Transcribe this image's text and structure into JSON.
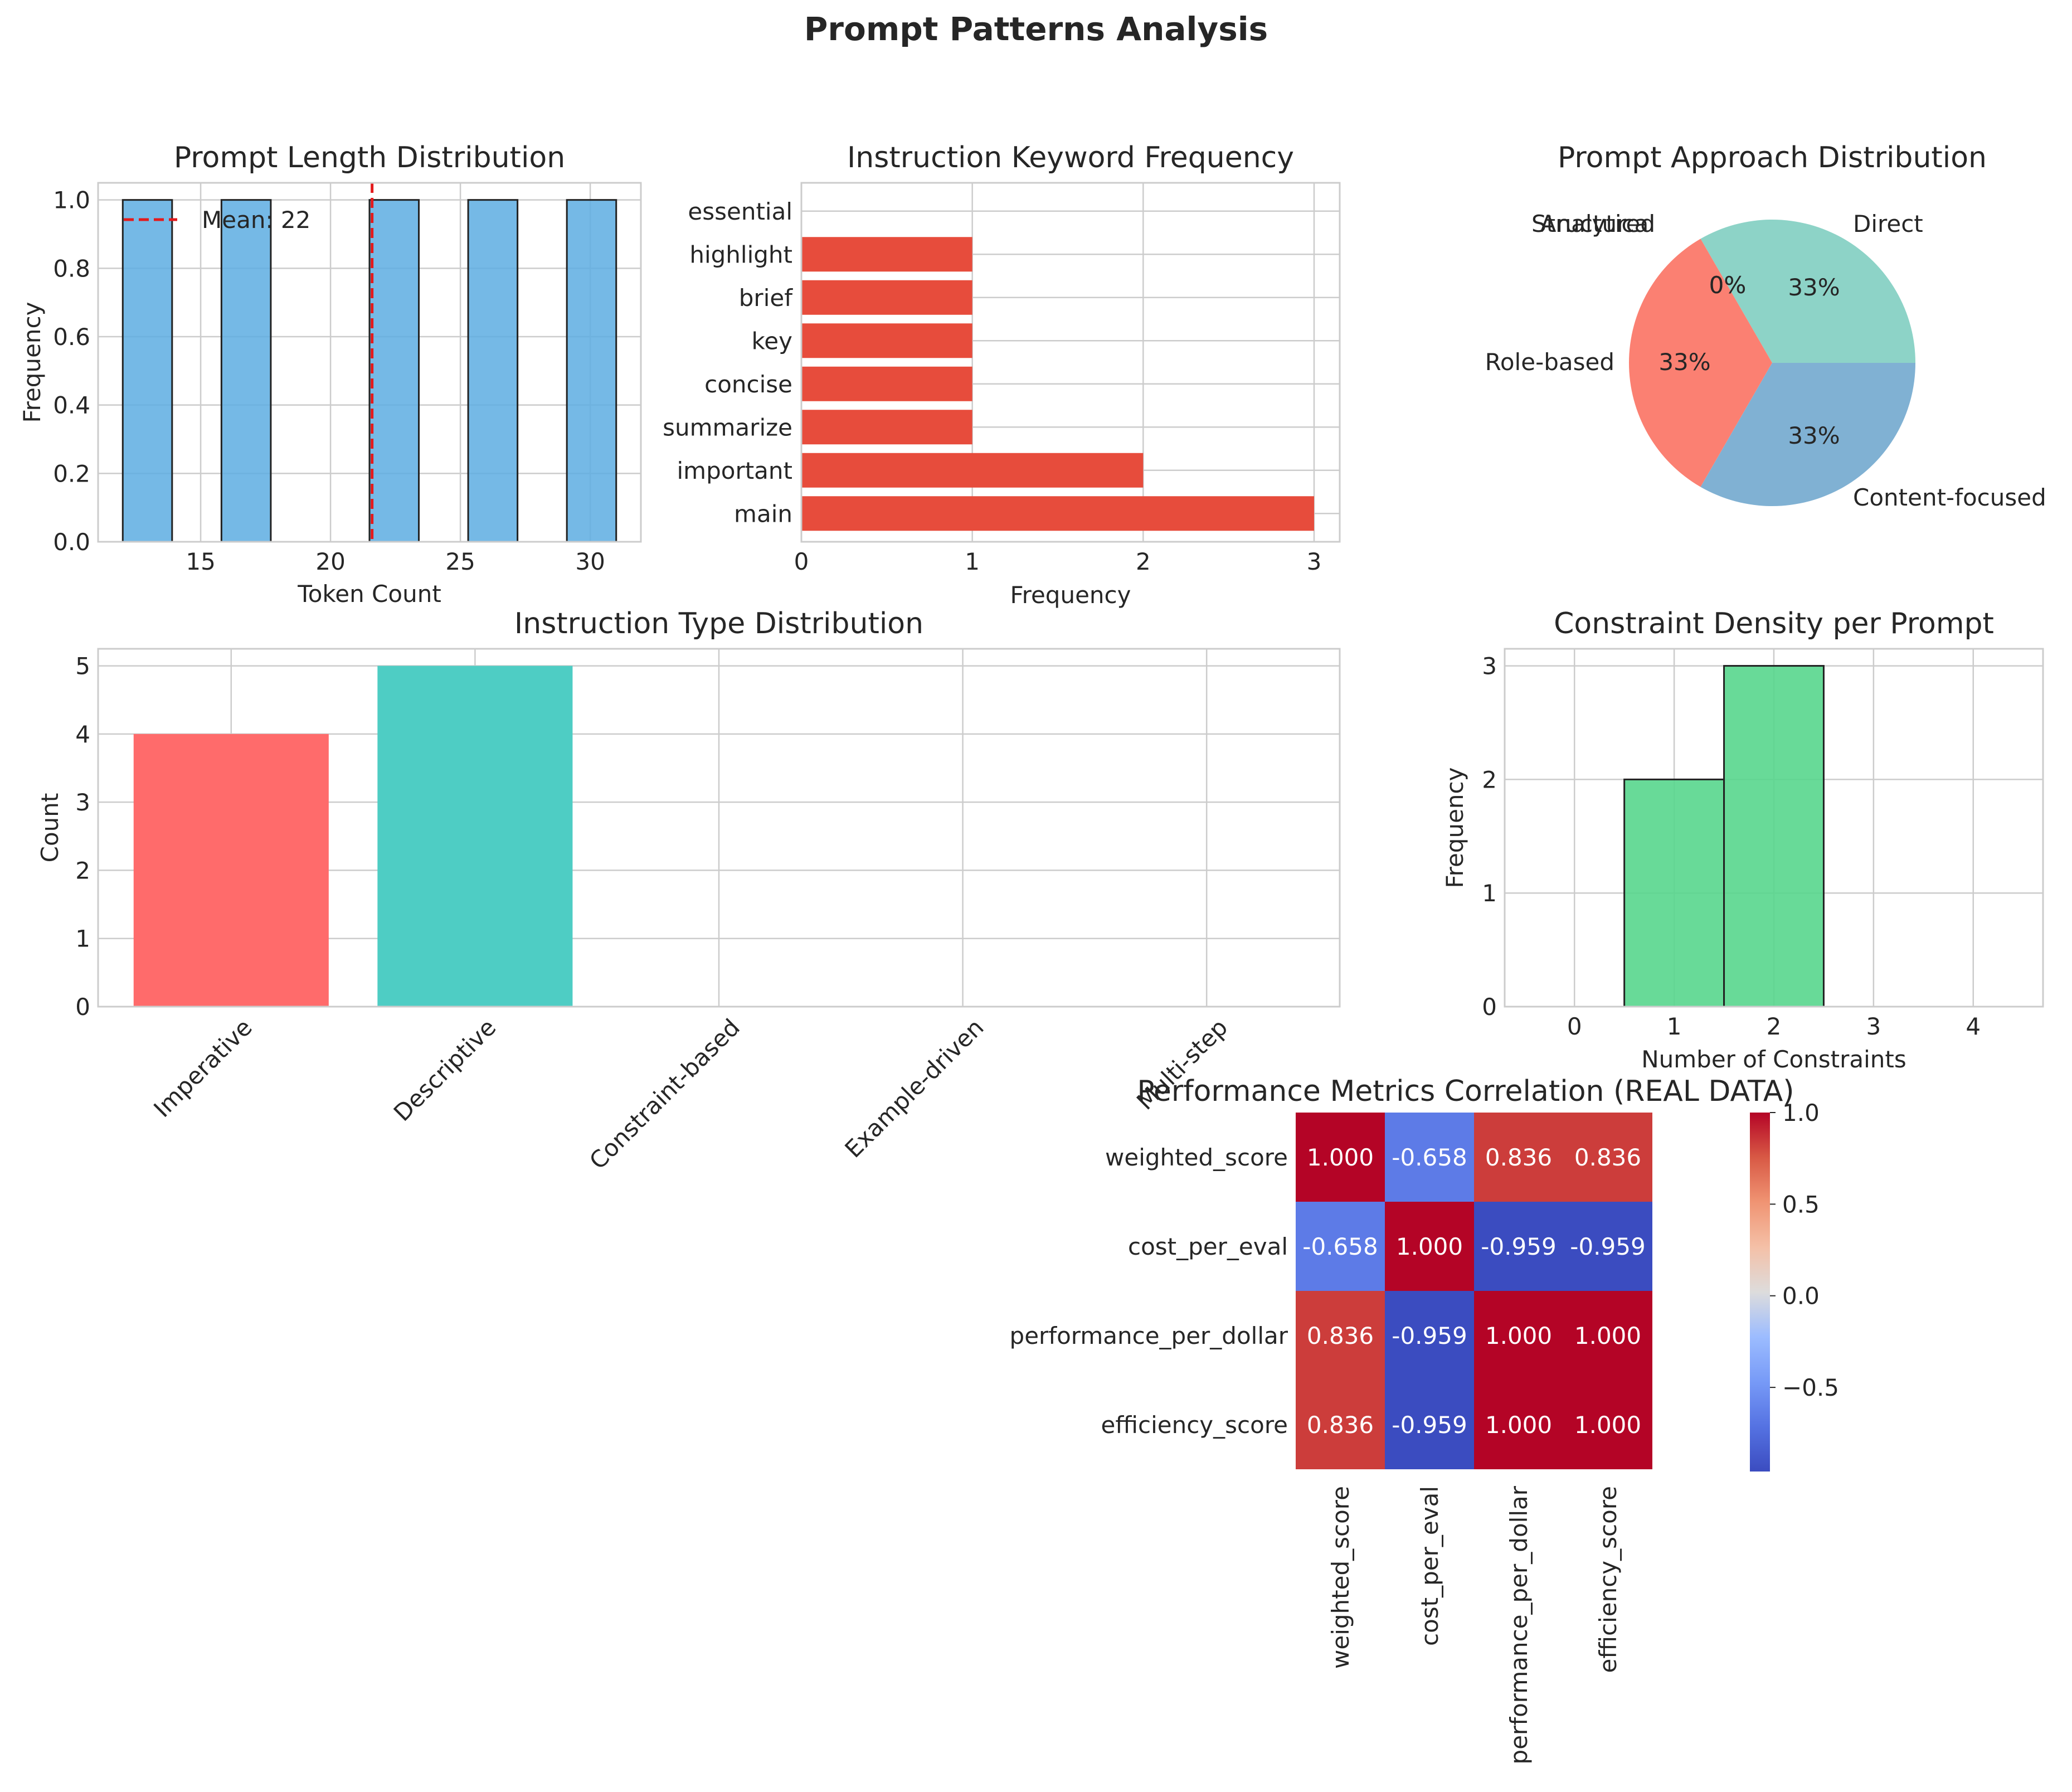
{
  "figure": {
    "title": "Prompt Patterns Analysis"
  },
  "chart_data": [
    {
      "id": "length",
      "type": "bar",
      "title": "Prompt Length Distribution",
      "xlabel": "Token Count",
      "ylabel": "Frequency",
      "bins": [
        [
          12,
          13.9
        ],
        [
          15.8,
          17.7
        ],
        [
          21.5,
          23.4
        ],
        [
          25.3,
          27.2
        ],
        [
          29.1,
          31
        ]
      ],
      "values": [
        1,
        1,
        1,
        1,
        1
      ],
      "xlim": [
        11.05,
        31.95
      ],
      "ylim": [
        0,
        1.05
      ],
      "xticks": [
        15,
        20,
        25,
        30
      ],
      "yticks": [
        0.0,
        0.2,
        0.4,
        0.6,
        0.8,
        1.0
      ],
      "mean_value": 21.6,
      "legend": [
        "Mean: 22"
      ],
      "grid": true,
      "color": "#5dade2",
      "mean_color": "#e31a1c"
    },
    {
      "id": "keywords",
      "type": "bar",
      "orientation": "horizontal",
      "title": "Instruction Keyword Frequency",
      "xlabel": "Frequency",
      "ylabel": "",
      "categories": [
        "main",
        "important",
        "summarize",
        "concise",
        "key",
        "brief",
        "highlight",
        "essential"
      ],
      "values": [
        3,
        2,
        1,
        1,
        1,
        1,
        1,
        0
      ],
      "xlim": [
        0,
        3.15
      ],
      "xticks": [
        0,
        1,
        2,
        3
      ],
      "grid": true,
      "color": "#e74c3c"
    },
    {
      "id": "approach",
      "type": "pie",
      "title": "Prompt Approach Distribution",
      "labels": [
        "Direct",
        "Role-based",
        "Content-focused",
        "Structured",
        "Analytical"
      ],
      "values": [
        1,
        1,
        1,
        0,
        0
      ],
      "pct_labels": [
        "33%",
        "33%",
        "33%",
        "0%",
        "0%"
      ],
      "colors": [
        "#8dd3c7",
        "#fb8072",
        "#80b1d3",
        "#ffffb3",
        "#bebada"
      ]
    },
    {
      "id": "types",
      "type": "bar",
      "title": "Instruction Type Distribution",
      "xlabel": "",
      "ylabel": "Count",
      "categories": [
        "Imperative",
        "Descriptive",
        "Constraint-based",
        "Example-driven",
        "Multi-step"
      ],
      "values": [
        4,
        5,
        0,
        0,
        0
      ],
      "ylim": [
        0,
        5.25
      ],
      "yticks": [
        0,
        1,
        2,
        3,
        4,
        5
      ],
      "grid": true,
      "colors": [
        "#ff6b6b",
        "#4ecdc4",
        "#45b7d1",
        "#96ceb4",
        "#feca57"
      ]
    },
    {
      "id": "constraints",
      "type": "bar",
      "title": "Constraint Density per Prompt",
      "xlabel": "Number of Constraints",
      "ylabel": "Frequency",
      "bins": [
        [
          0.5,
          1.5
        ],
        [
          1.5,
          2.5
        ]
      ],
      "values": [
        2,
        3
      ],
      "xlim": [
        -0.7,
        4.7
      ],
      "ylim": [
        0,
        3.15
      ],
      "xticks": [
        0,
        1,
        2,
        3,
        4
      ],
      "yticks": [
        0,
        1,
        2,
        3
      ],
      "grid": true,
      "color": "#58d68d"
    },
    {
      "id": "corr",
      "type": "heatmap",
      "title": "Performance Metrics Correlation (REAL DATA)",
      "labels": [
        "weighted_score",
        "cost_per_eval",
        "performance_per_dollar",
        "efficiency_score"
      ],
      "matrix": [
        [
          1.0,
          -0.658,
          0.836,
          0.836
        ],
        [
          -0.658,
          1.0,
          -0.959,
          -0.959
        ],
        [
          0.836,
          -0.959,
          1.0,
          1.0
        ],
        [
          0.836,
          -0.959,
          1.0,
          1.0
        ]
      ],
      "cell_text": [
        [
          "1.000",
          "-0.658",
          "0.836",
          "0.836"
        ],
        [
          "-0.658",
          "1.000",
          "-0.959",
          "-0.959"
        ],
        [
          "0.836",
          "-0.959",
          "1.000",
          "1.000"
        ],
        [
          "0.836",
          "-0.959",
          "1.000",
          "1.000"
        ]
      ],
      "colorbar": {
        "vmin": -0.959,
        "vmax": 1.0,
        "ticks": [
          1.0,
          0.5,
          0.0,
          -0.5
        ],
        "tick_labels": [
          "1.0",
          "0.5",
          "0.0",
          "−0.5"
        ]
      },
      "colormap": "coolwarm"
    }
  ]
}
